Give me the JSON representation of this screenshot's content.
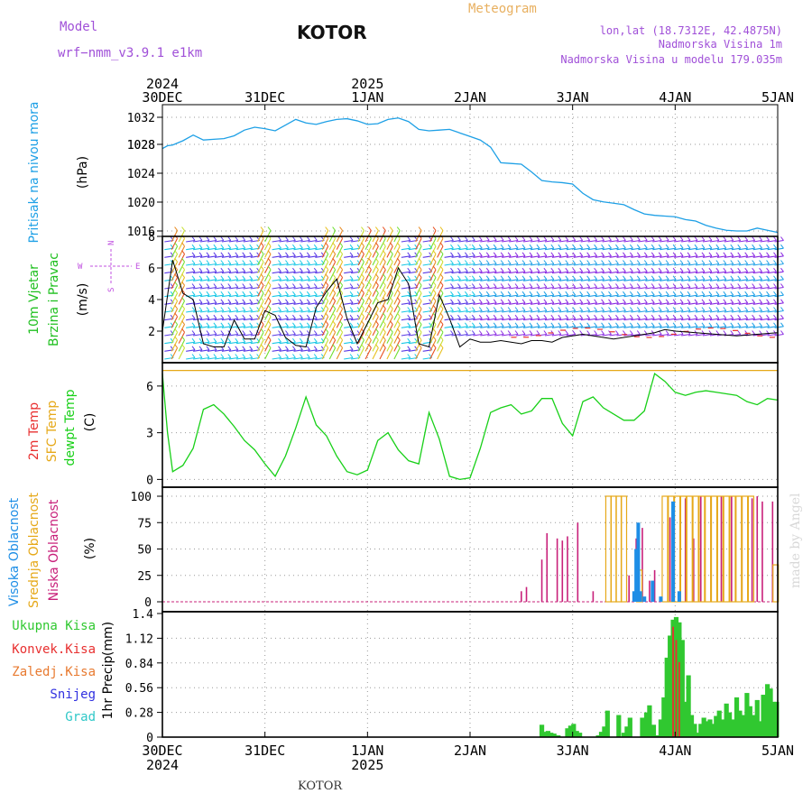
{
  "header": {
    "model_label": "Model",
    "model_name": "wrf−nmm_v3.9.1  e1km",
    "station": "KOTOR",
    "meteogram": "Meteogram",
    "lonlat": "lon,lat (18.7312E, 42.4875N)",
    "elevation": "Nadmorska Visina 1m",
    "model_elevation": "Nadmorska Visina u modelu 179.035m",
    "footer_station": "KOTOR",
    "credit": "made by Angel"
  },
  "time_axis": {
    "ticks": [
      "30DEC",
      "31DEC",
      "1JAN",
      "2JAN",
      "3JAN",
      "4JAN",
      "5JAN"
    ],
    "years": [
      {
        "at": 0,
        "label": "2024"
      },
      {
        "at": 2,
        "label": "2025"
      }
    ],
    "range_days": [
      0,
      6
    ]
  },
  "colors": {
    "pressure": "#1ea0e6",
    "dewpoint": "#18d018",
    "sfc_temp": "#e6a818",
    "temp2m": "#e83030",
    "wind_mean": "#000000",
    "precip_total": "#30c830",
    "cloud_low": "#c8207a",
    "cloud_mid": "#e6a818",
    "cloud_high": "#1e8ee6",
    "wind_dir_label": "#c050e0",
    "header_purple": "#a050d8",
    "header_orange": "#e8b060"
  },
  "chart_data": [
    {
      "type": "line",
      "panel": "pressure",
      "labels": [
        "Pritisak na nivou mora",
        "(hPa)"
      ],
      "ylim": [
        1016,
        1032
      ],
      "yticks": [
        "1032",
        "1028",
        "1028",
        "1024",
        "1020",
        "1016"
      ],
      "series": [
        {
          "color": "#1ea0e6",
          "x": [
            0,
            0.05,
            0.1,
            0.2,
            0.3,
            0.4,
            0.5,
            0.6,
            0.7,
            0.8,
            0.9,
            1.0,
            1.1,
            1.2,
            1.3,
            1.4,
            1.5,
            1.6,
            1.7,
            1.8,
            1.9,
            2.0,
            2.1,
            2.2,
            2.3,
            2.4,
            2.5,
            2.6,
            2.7,
            2.8,
            2.9,
            3.0,
            3.1,
            3.2,
            3.3,
            3.4,
            3.5,
            3.6,
            3.7,
            3.8,
            3.9,
            4.0,
            4.1,
            4.2,
            4.3,
            4.4,
            4.5,
            4.6,
            4.7,
            4.8,
            4.9,
            5.0,
            5.1,
            5.2,
            5.3,
            5.4,
            5.5,
            5.6,
            5.7,
            5.8,
            5.9,
            6.0
          ],
          "y": [
            1027.6,
            1028,
            1028.1,
            1028.7,
            1029.5,
            1028.8,
            1028.9,
            1029,
            1029.4,
            1030.2,
            1030.6,
            1030.4,
            1030.1,
            1030.9,
            1031.7,
            1031.2,
            1031.0,
            1031.4,
            1031.7,
            1031.8,
            1031.5,
            1031.0,
            1031.1,
            1031.7,
            1031.9,
            1031.4,
            1030.3,
            1030.1,
            1030.2,
            1030.3,
            1029.8,
            1029.3,
            1028.8,
            1027.8,
            1025.6,
            1025.5,
            1025.4,
            1024.3,
            1023.1,
            1022.9,
            1022.8,
            1022.6,
            1021.3,
            1020.4,
            1020.1,
            1019.9,
            1019.7,
            1019.0,
            1018.4,
            1018.2,
            1018.1,
            1018.0,
            1017.6,
            1017.4,
            1016.8,
            1016.4,
            1016.1,
            1016.0,
            1016.0,
            1016.4,
            1016.1,
            1015.8
          ]
        }
      ]
    },
    {
      "type": "line",
      "panel": "wind",
      "labels": [
        "10m Vjetar",
        "Brzina i Pravac",
        "(m/s)"
      ],
      "direction_labels": {
        "n": "N",
        "s": "S",
        "w": "W",
        "e": "E"
      },
      "ylim": [
        0,
        8
      ],
      "yticks": [
        "2",
        "4",
        "6",
        "8"
      ],
      "series": [
        {
          "name_hidden": true,
          "color": "#000000",
          "x": [
            0,
            0.1,
            0.2,
            0.3,
            0.4,
            0.5,
            0.6,
            0.7,
            0.8,
            0.9,
            1.0,
            1.1,
            1.2,
            1.3,
            1.4,
            1.5,
            1.6,
            1.7,
            1.8,
            1.9,
            2.0,
            2.1,
            2.2,
            2.3,
            2.4,
            2.5,
            2.6,
            2.7,
            2.8,
            2.9,
            3.0,
            3.1,
            3.2,
            3.3,
            3.4,
            3.5,
            3.6,
            3.7,
            3.8,
            3.9,
            4.0,
            4.1,
            4.2,
            4.3,
            4.4,
            4.5,
            4.6,
            4.7,
            4.8,
            4.9,
            5.0,
            5.2,
            5.4,
            5.6,
            5.8,
            6.0
          ],
          "y": [
            2.0,
            6.5,
            4.4,
            4.0,
            1.2,
            1.0,
            1.0,
            2.7,
            1.5,
            1.5,
            3.3,
            3.0,
            1.6,
            1.1,
            1.0,
            3.5,
            4.5,
            5.3,
            2.8,
            1.2,
            2.5,
            3.8,
            4.0,
            6.0,
            5.0,
            1.2,
            1.0,
            4.3,
            2.8,
            1.0,
            1.5,
            1.3,
            1.3,
            1.4,
            1.3,
            1.2,
            1.4,
            1.4,
            1.3,
            1.6,
            1.7,
            1.8,
            1.7,
            1.6,
            1.5,
            1.6,
            1.7,
            1.8,
            1.9,
            2.1,
            2.0,
            1.9,
            1.8,
            1.7,
            1.8,
            1.9
          ]
        }
      ]
    },
    {
      "type": "line",
      "panel": "temperature",
      "labels": [
        "2m Temp",
        "SFC Temp",
        "dewpt Temp",
        "(C)"
      ],
      "ylim": [
        -0.5,
        7.5
      ],
      "yticks": [
        "0",
        "3",
        "6"
      ],
      "series": [
        {
          "color": "#18d018",
          "x": [
            0,
            0.05,
            0.1,
            0.2,
            0.3,
            0.4,
            0.5,
            0.6,
            0.7,
            0.8,
            0.9,
            1.0,
            1.1,
            1.2,
            1.3,
            1.4,
            1.5,
            1.6,
            1.7,
            1.8,
            1.9,
            2.0,
            2.1,
            2.2,
            2.3,
            2.4,
            2.5,
            2.6,
            2.7,
            2.8,
            2.9,
            3.0,
            3.1,
            3.2,
            3.3,
            3.4,
            3.5,
            3.6,
            3.7,
            3.8,
            3.9,
            4.0,
            4.1,
            4.2,
            4.3,
            4.4,
            4.5,
            4.6,
            4.7,
            4.8,
            4.9,
            5.0,
            5.1,
            5.2,
            5.3,
            5.4,
            5.5,
            5.6,
            5.7,
            5.8,
            5.9,
            6.0
          ],
          "y": [
            6.8,
            3.0,
            0.5,
            0.9,
            2.0,
            4.5,
            4.8,
            4.2,
            3.4,
            2.5,
            1.9,
            1.0,
            0.2,
            1.5,
            3.3,
            5.3,
            3.5,
            2.8,
            1.5,
            0.5,
            0.3,
            0.6,
            2.5,
            3.0,
            1.9,
            1.2,
            1.0,
            4.3,
            2.6,
            0.2,
            0.0,
            0.1,
            2.0,
            4.3,
            4.6,
            4.8,
            4.2,
            4.4,
            5.2,
            5.2,
            3.6,
            2.8,
            5.0,
            5.3,
            4.6,
            4.2,
            3.8,
            3.8,
            4.4,
            6.8,
            6.3,
            5.6,
            5.4,
            5.6,
            5.7,
            5.6,
            5.5,
            5.4,
            5.0,
            4.8,
            5.2,
            5.1
          ]
        },
        {
          "color": "#e6a818",
          "x": [
            0,
            6
          ],
          "y": [
            7.0,
            7.0
          ]
        }
      ]
    },
    {
      "type": "bar",
      "panel": "cloud",
      "labels": [
        "Visoka Oblacnost",
        "Srednja Oblacnost",
        "Niska Oblacnost",
        "(%)"
      ],
      "ylim": [
        0,
        100
      ],
      "yticks": [
        "0",
        "25",
        "50",
        "75",
        "100"
      ],
      "series": [
        {
          "color": "#c8207a",
          "x": [
            3.5,
            3.55,
            3.7,
            3.75,
            3.85,
            3.9,
            3.95,
            4.05,
            4.2,
            4.55,
            4.62,
            4.68,
            4.75,
            4.8,
            4.95,
            5.05,
            5.1,
            5.18,
            5.25,
            5.35,
            5.45,
            5.55,
            5.65,
            5.75,
            5.8,
            5.85,
            5.95
          ],
          "y": [
            10,
            14,
            40,
            65,
            60,
            58,
            62,
            75,
            10,
            25,
            60,
            70,
            20,
            30,
            80,
            100,
            98,
            60,
            100,
            100,
            100,
            100,
            100,
            98,
            100,
            95,
            95
          ]
        },
        {
          "color": "#e6a818",
          "x": [
            4.35,
            4.4,
            4.45,
            4.5,
            4.65,
            4.9,
            4.96,
            5.02,
            5.08,
            5.14,
            5.2,
            5.26,
            5.32,
            5.38,
            5.44,
            5.5,
            5.56,
            5.62,
            5.68,
            5.74,
            5.98
          ],
          "y": [
            100,
            100,
            100,
            100,
            30,
            100,
            100,
            100,
            100,
            100,
            100,
            100,
            100,
            100,
            100,
            100,
            100,
            100,
            100,
            100,
            35
          ]
        },
        {
          "color": "#1e8ee6",
          "x": [
            4.6,
            4.62,
            4.64,
            4.66,
            4.7,
            4.78,
            4.86,
            4.98,
            5.04
          ],
          "y": [
            10,
            50,
            75,
            10,
            5,
            20,
            5,
            95,
            10
          ]
        }
      ]
    },
    {
      "type": "bar",
      "panel": "precip",
      "labels": [
        "Ukupna Kisa",
        "Konvek.Kisa",
        "Zaledj.Kisa",
        "Snijeg",
        "Grad",
        "1hr Precip",
        "(mm)"
      ],
      "ylim": [
        0,
        1.4
      ],
      "yticks": [
        "0",
        "0.28",
        "0.56",
        "0.84",
        "1.12",
        "1.4"
      ],
      "series": [
        {
          "color": "#30c830",
          "x": [
            3.7,
            3.73,
            3.76,
            3.79,
            3.82,
            3.86,
            3.95,
            3.98,
            4.01,
            4.04,
            4.07,
            4.25,
            4.28,
            4.31,
            4.34,
            4.45,
            4.5,
            4.53,
            4.56,
            4.68,
            4.72,
            4.75,
            4.79,
            4.83,
            4.86,
            4.89,
            4.92,
            4.95,
            4.98,
            5.01,
            5.04,
            5.07,
            5.1,
            5.13,
            5.16,
            5.19,
            5.22,
            5.25,
            5.28,
            5.31,
            5.34,
            5.37,
            5.4,
            5.43,
            5.46,
            5.5,
            5.53,
            5.56,
            5.6,
            5.63,
            5.66,
            5.7,
            5.73,
            5.76,
            5.8,
            5.83,
            5.86,
            5.9,
            5.93,
            5.96,
            5.99
          ],
          "y": [
            0.14,
            0.06,
            0.07,
            0.05,
            0.04,
            0.02,
            0.1,
            0.13,
            0.15,
            0.07,
            0.05,
            0.02,
            0.06,
            0.12,
            0.3,
            0.25,
            0.05,
            0.12,
            0.22,
            0.22,
            0.28,
            0.36,
            0.14,
            0.02,
            0.2,
            0.45,
            0.9,
            1.15,
            1.33,
            1.36,
            1.3,
            1.1,
            0.4,
            0.7,
            0.25,
            0.15,
            0.05,
            0.15,
            0.22,
            0.18,
            0.2,
            0.15,
            0.24,
            0.3,
            0.2,
            0.38,
            0.28,
            0.2,
            0.45,
            0.3,
            0.25,
            0.5,
            0.35,
            0.25,
            0.42,
            0.18,
            0.48,
            0.6,
            0.55,
            0.4,
            0.4
          ]
        },
        {
          "color": "#e83030",
          "x": [
            4.98,
            5.01,
            5.04
          ],
          "y": [
            1.25,
            1.1,
            0.85
          ]
        }
      ]
    }
  ]
}
